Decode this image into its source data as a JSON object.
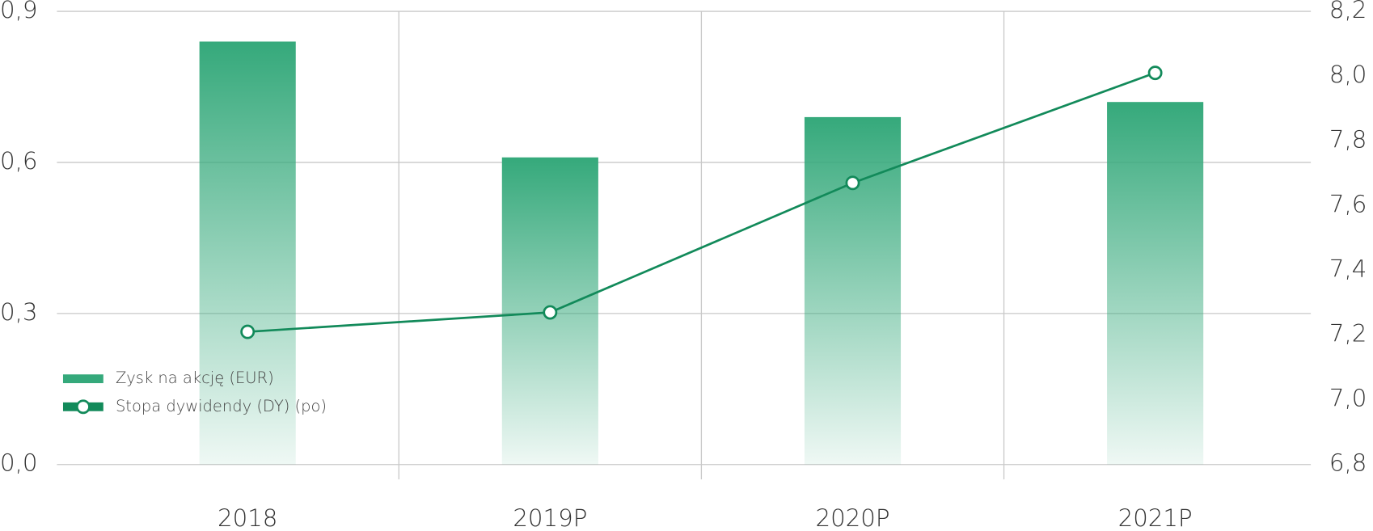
{
  "chart_data": {
    "type": "bar-line",
    "categories": [
      "2018",
      "2019P",
      "2020P",
      "2021P"
    ],
    "series": [
      {
        "name": "Zysk na akcję (EUR)",
        "type": "bar",
        "color": "#35a97b",
        "values": [
          0.84,
          0.61,
          0.69,
          0.72
        ]
      },
      {
        "name": "Stopa dywidendy (DY) (po)",
        "type": "line",
        "axis": "y2",
        "color": "#128a5a",
        "values": [
          7.21,
          7.27,
          7.67,
          8.01
        ]
      }
    ],
    "ylim": [
      0,
      0.9
    ],
    "yticks": [
      {
        "value": 0,
        "label": "0,0"
      },
      {
        "value": 0.3,
        "label": "0,3"
      },
      {
        "value": 0.6,
        "label": "0,6"
      },
      {
        "value": 0.9,
        "label": "0,9"
      }
    ],
    "y2lim": [
      6.8,
      8.2
    ],
    "y2ticks": [
      {
        "value": 6.8,
        "label": "6,8"
      },
      {
        "value": 7.0,
        "label": "7,0"
      },
      {
        "value": 7.2,
        "label": "7,2"
      },
      {
        "value": 7.4,
        "label": "7,4"
      },
      {
        "value": 7.6,
        "label": "7,6"
      },
      {
        "value": 7.8,
        "label": "7,8"
      },
      {
        "value": 8.0,
        "label": "8,0"
      },
      {
        "value": 8.2,
        "label": "8,2"
      }
    ],
    "grid": true,
    "legend": "lower-left"
  }
}
